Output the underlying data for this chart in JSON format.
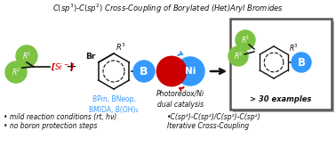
{
  "title": "C(sp³)-C(sp²) Cross-Coupling of Borylated (Het)Aryl Bromides",
  "bg_color": "#ffffff",
  "green_color": "#7dc242",
  "blue_color": "#3399ff",
  "blue_dark": "#2266cc",
  "red_color": "#cc0000",
  "dark_color": "#111111",
  "bullet1": "mild reaction conditions (rt, hν)",
  "bullet2": "no boron protection steps",
  "bullet3": "•C(sp³)-C(sp²)/C(sp²)-C(sp²)",
  "bullet4": "Iterative Cross-Coupling",
  "boron_labels": "BPin, BNeop,\nBMIDA, B(OH)₂",
  "photoredox": "Photoredox/Ni\ndual catalysis",
  "examples": "> 30 examples"
}
